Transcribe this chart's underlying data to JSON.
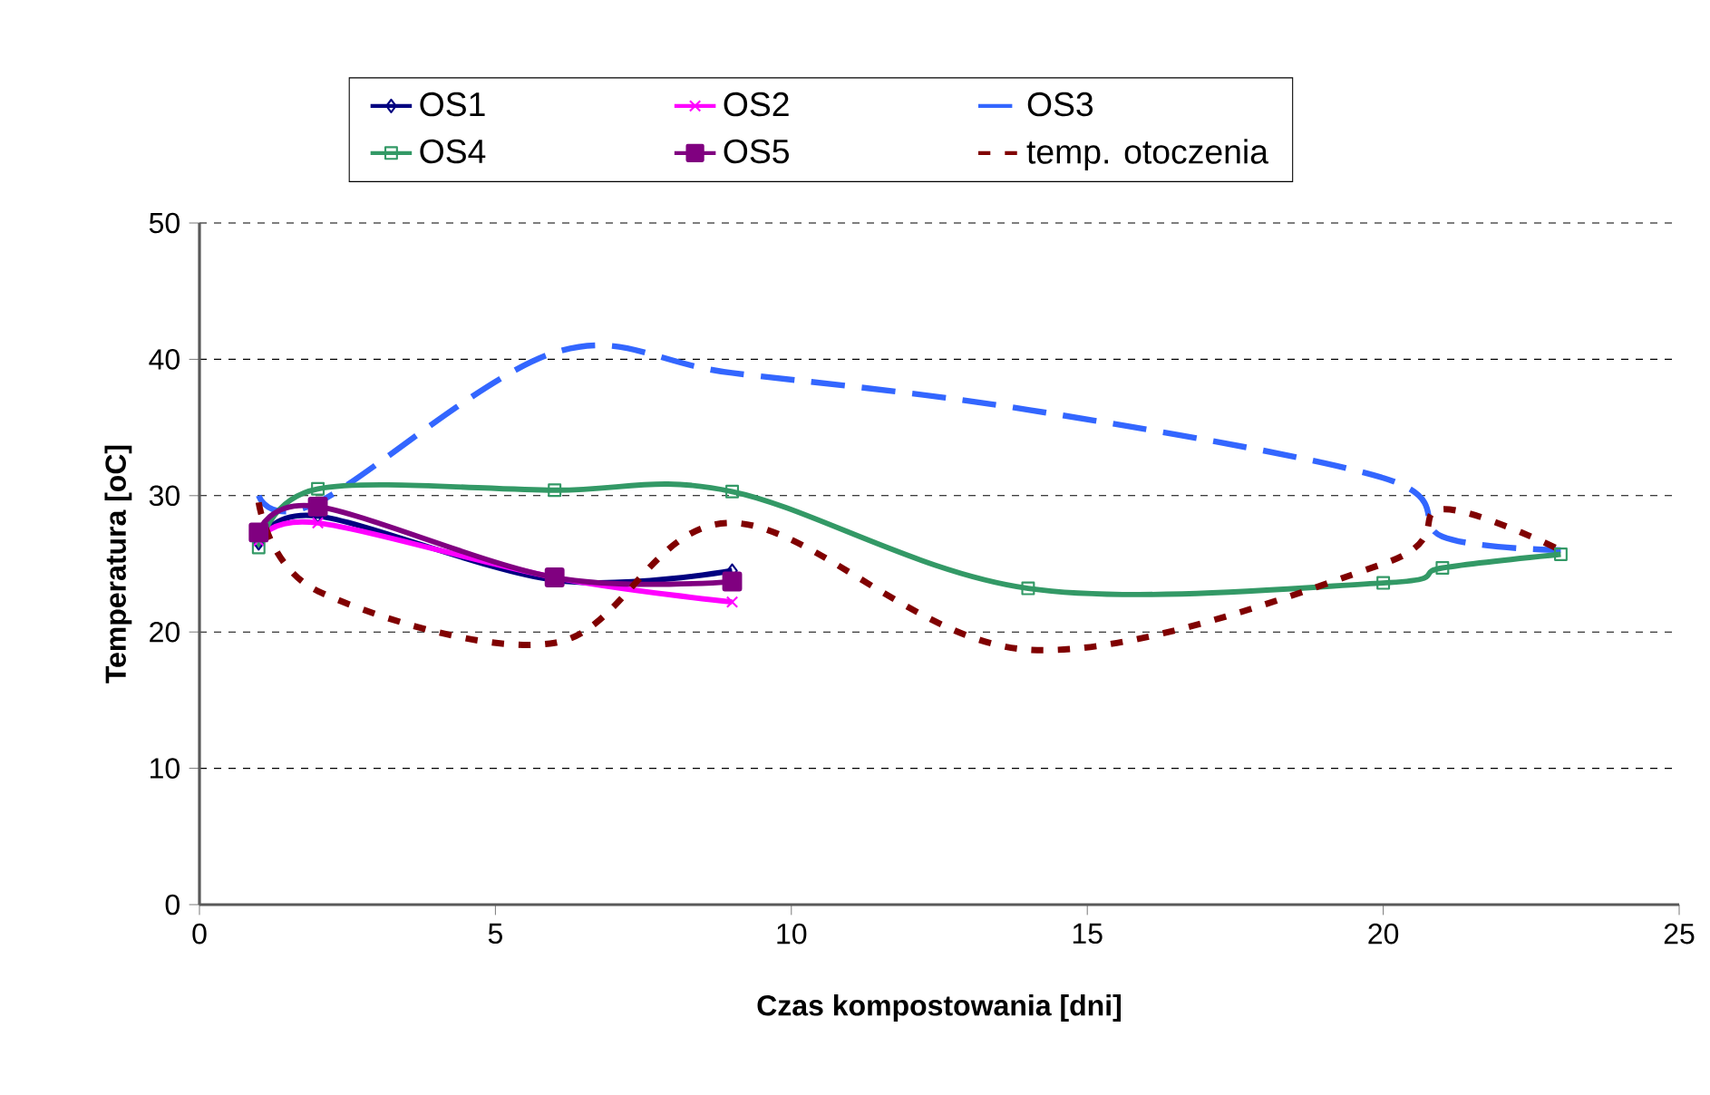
{
  "chart_data": {
    "type": "line",
    "xlabel": "Czas kompostowania [dni]",
    "ylabel": "Temperatura [oC]",
    "xlim": [
      0,
      25
    ],
    "ylim": [
      0,
      50
    ],
    "xticks": [
      0,
      5,
      10,
      15,
      20,
      25
    ],
    "yticks": [
      0,
      10,
      20,
      30,
      40,
      50
    ],
    "grid": "y",
    "legend": "top",
    "series": [
      {
        "name": "OS1",
        "color": "#000080",
        "marker": "diamond",
        "line_style": "solid",
        "x": [
          1,
          2,
          6,
          9
        ],
        "values": [
          26.5,
          28.5,
          23.8,
          24.5
        ]
      },
      {
        "name": "OS2",
        "color": "#ff00ff",
        "marker": "cross",
        "line_style": "solid",
        "x": [
          1,
          2,
          6,
          9
        ],
        "values": [
          26.7,
          28.0,
          24.0,
          22.2
        ]
      },
      {
        "name": "OS3",
        "color": "#3366ff",
        "marker": "none",
        "line_style": "dashed",
        "x": [
          1,
          2,
          6,
          9,
          14,
          20,
          21,
          23
        ],
        "values": [
          30.0,
          29.5,
          40.5,
          39.0,
          36.3,
          31.3,
          27.0,
          26.0
        ]
      },
      {
        "name": "OS4",
        "color": "#339966",
        "marker": "square",
        "line_style": "solid",
        "x": [
          1,
          2,
          6,
          9,
          14,
          20,
          21,
          23
        ],
        "values": [
          26.2,
          30.5,
          30.4,
          30.3,
          23.2,
          23.6,
          24.7,
          25.7
        ]
      },
      {
        "name": "OS5",
        "color": "#800080",
        "marker": "square*",
        "line_style": "solid",
        "x": [
          1,
          2,
          6,
          9
        ],
        "values": [
          27.3,
          29.2,
          24.0,
          23.7
        ]
      },
      {
        "name": "temp. otoczenia",
        "color": "#800000",
        "marker": "none",
        "line_style": "dotted",
        "x": [
          1,
          2,
          6,
          9,
          14,
          20,
          21,
          23
        ],
        "values": [
          29.5,
          23.0,
          19.2,
          28.0,
          18.7,
          25.0,
          29.0,
          26.0
        ]
      }
    ]
  }
}
